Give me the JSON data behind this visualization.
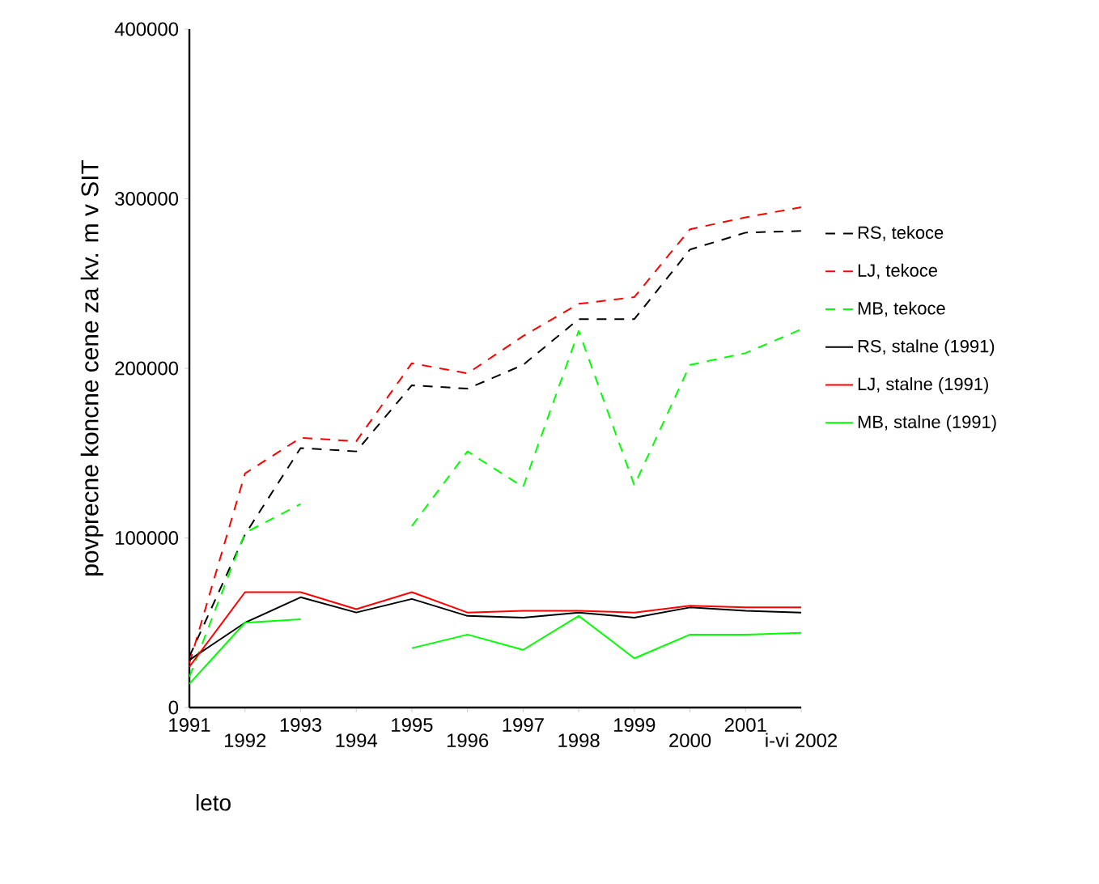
{
  "chart_data": {
    "type": "line",
    "xlabel": "leto",
    "ylabel": "povprecne koncne cene za kv. m v SIT",
    "categories": [
      "1991",
      "1992",
      "1993",
      "1994",
      "1995",
      "1996",
      "1997",
      "1998",
      "1999",
      "2000",
      "2001",
      "i-vi 2002"
    ],
    "ylim": [
      0,
      400000
    ],
    "yticks": [
      0,
      100000,
      200000,
      300000,
      400000
    ],
    "legend": "right",
    "marker": "none",
    "series": [
      {
        "name": "RS, tekoce",
        "color": "#000000",
        "line_style": "dashed",
        "values": [
          30000,
          102000,
          153000,
          151000,
          190000,
          188000,
          202000,
          229000,
          229000,
          270000,
          280000,
          281000
        ]
      },
      {
        "name": "LJ, tekoce",
        "color": "#ff0000",
        "line_style": "dashed",
        "values": [
          26000,
          138000,
          159000,
          157000,
          203000,
          197000,
          219000,
          238000,
          242000,
          282000,
          289000,
          295000
        ]
      },
      {
        "name": "MB, tekoce",
        "color": "#00ff00",
        "line_style": "dashed",
        "values": [
          18000,
          103000,
          120000,
          null,
          107000,
          151000,
          130000,
          222000,
          131000,
          202000,
          209000,
          223000
        ]
      },
      {
        "name": "RS, stalne (1991)",
        "color": "#000000",
        "line_style": "solid",
        "values": [
          28000,
          50000,
          65000,
          56000,
          64000,
          54000,
          53000,
          56000,
          53000,
          59000,
          57000,
          56000
        ]
      },
      {
        "name": "LJ, stalne (1991)",
        "color": "#ff0000",
        "line_style": "solid",
        "values": [
          24000,
          68000,
          68000,
          58000,
          68000,
          56000,
          57000,
          57000,
          56000,
          60000,
          59000,
          59000
        ]
      },
      {
        "name": "MB, stalne (1991)",
        "color": "#00ff00",
        "line_style": "solid",
        "values": [
          14000,
          50000,
          52000,
          null,
          35000,
          43000,
          34000,
          54000,
          29000,
          43000,
          43000,
          44000
        ]
      }
    ]
  }
}
